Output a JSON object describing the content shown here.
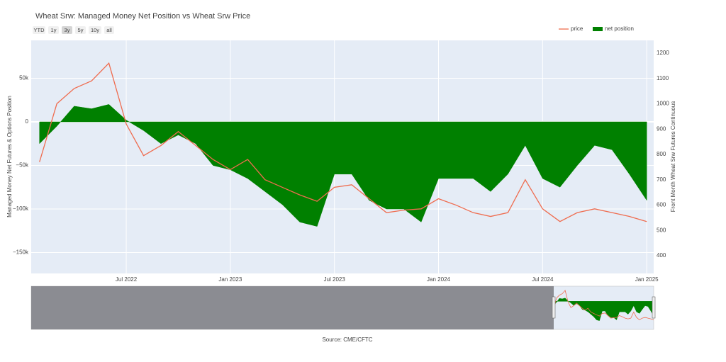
{
  "chart_data": {
    "type": "area-line",
    "title": "Wheat Srw: Managed Money Net Position vs Wheat Srw Price",
    "range_buttons": [
      "YTD",
      "1y",
      "3y",
      "5y",
      "10y",
      "all"
    ],
    "active_button": "3y",
    "x": [
      "Feb 2022",
      "Mar 2022",
      "Apr 2022",
      "May 2022",
      "Jun 2022",
      "Jul 2022",
      "Aug 2022",
      "Sep 2022",
      "Oct 2022",
      "Nov 2022",
      "Dec 2022",
      "Jan 2023",
      "Feb 2023",
      "Mar 2023",
      "Apr 2023",
      "May 2023",
      "Jun 2023",
      "Jul 2023",
      "Aug 2023",
      "Sep 2023",
      "Oct 2023",
      "Nov 2023",
      "Dec 2023",
      "Jan 2024",
      "Feb 2024",
      "Mar 2024",
      "Apr 2024",
      "May 2024",
      "Jun 2024",
      "Jul 2024",
      "Aug 2024",
      "Sep 2024",
      "Oct 2024",
      "Nov 2024",
      "Dec 2024",
      "Jan 2025"
    ],
    "xticks": [
      "Jul 2022",
      "Jan 2023",
      "Jul 2023",
      "Jan 2024",
      "Jul 2024",
      "Jan 2025"
    ],
    "series": [
      {
        "name": "price",
        "kind": "line",
        "axis": "y2",
        "color": "#ef6c4f",
        "values": [
          770,
          1000,
          1060,
          1090,
          1160,
          920,
          795,
          835,
          890,
          835,
          780,
          740,
          780,
          700,
          670,
          640,
          615,
          670,
          680,
          625,
          570,
          580,
          585,
          625,
          600,
          570,
          555,
          570,
          700,
          585,
          535,
          570,
          585,
          570,
          555,
          535
        ]
      },
      {
        "name": "net position",
        "kind": "area",
        "axis": "y",
        "color": "#008000",
        "values": [
          -25000,
          -5000,
          18000,
          15000,
          20000,
          2000,
          -10000,
          -25000,
          -15000,
          -25000,
          -50000,
          -55000,
          -65000,
          -80000,
          -95000,
          -115000,
          -120000,
          -60000,
          -60000,
          -90000,
          -100000,
          -100000,
          -115000,
          -65000,
          -65000,
          -65000,
          -80000,
          -60000,
          -27000,
          -65000,
          -75000,
          -50000,
          -27000,
          -32000,
          -60000,
          -90000
        ]
      }
    ],
    "y_label": "Managed Money Net Futures & Options Position",
    "y2_label": "Front Month Wheat Srw Futures Continuous",
    "ylim": [
      -174000,
      93500
    ],
    "yticks": [
      {
        "value": 50000,
        "label": "50k"
      },
      0,
      {
        "value": -50000,
        "label": "−50k"
      },
      {
        "value": -100000,
        "label": "−100k"
      },
      {
        "value": -150000,
        "label": "−150k"
      }
    ],
    "y2lim": [
      330,
      1250
    ],
    "y2ticks": [
      400,
      500,
      600,
      700,
      800,
      900,
      1000,
      1100,
      1200
    ],
    "grid": true,
    "legend": "top-right",
    "source": "Source: CME/CFTC"
  }
}
